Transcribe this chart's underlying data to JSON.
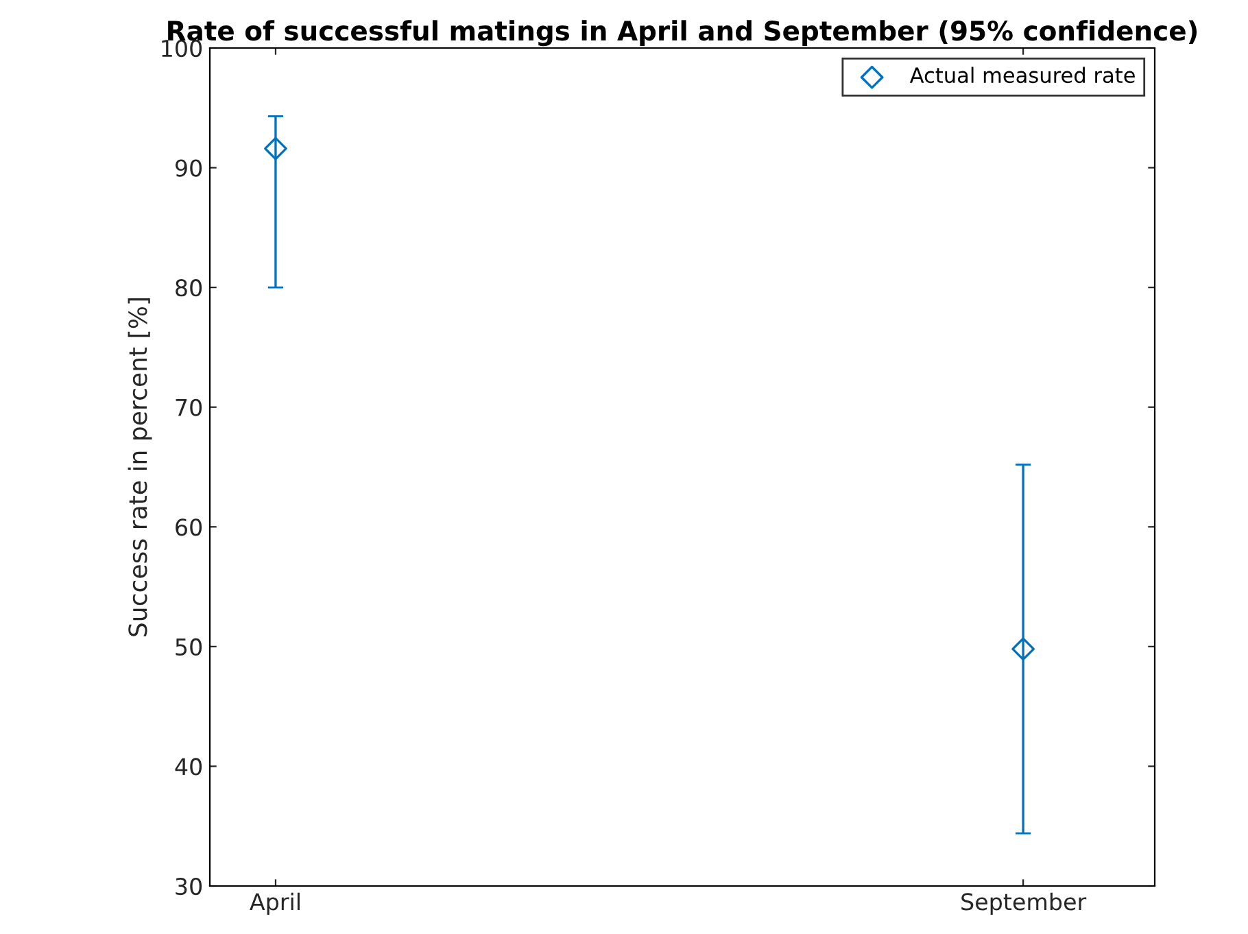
{
  "chart_data": {
    "type": "scatter",
    "title": "Rate of successful matings in April and September (95% confidence)",
    "ylabel": "Success rate in percent [%]",
    "categories": [
      "April",
      "September"
    ],
    "series": [
      {
        "name": "Actual measured rate",
        "color": "#0072bd",
        "values": [
          91.6,
          49.8
        ],
        "errors": [
          [
            80,
            94.3
          ],
          [
            34.4,
            65.2
          ]
        ]
      }
    ],
    "ylim": [
      30,
      100
    ],
    "yticks": [
      30,
      40,
      50,
      60,
      70,
      80,
      90,
      100
    ],
    "marker": "diamond",
    "legend": "top right",
    "grid": false
  }
}
